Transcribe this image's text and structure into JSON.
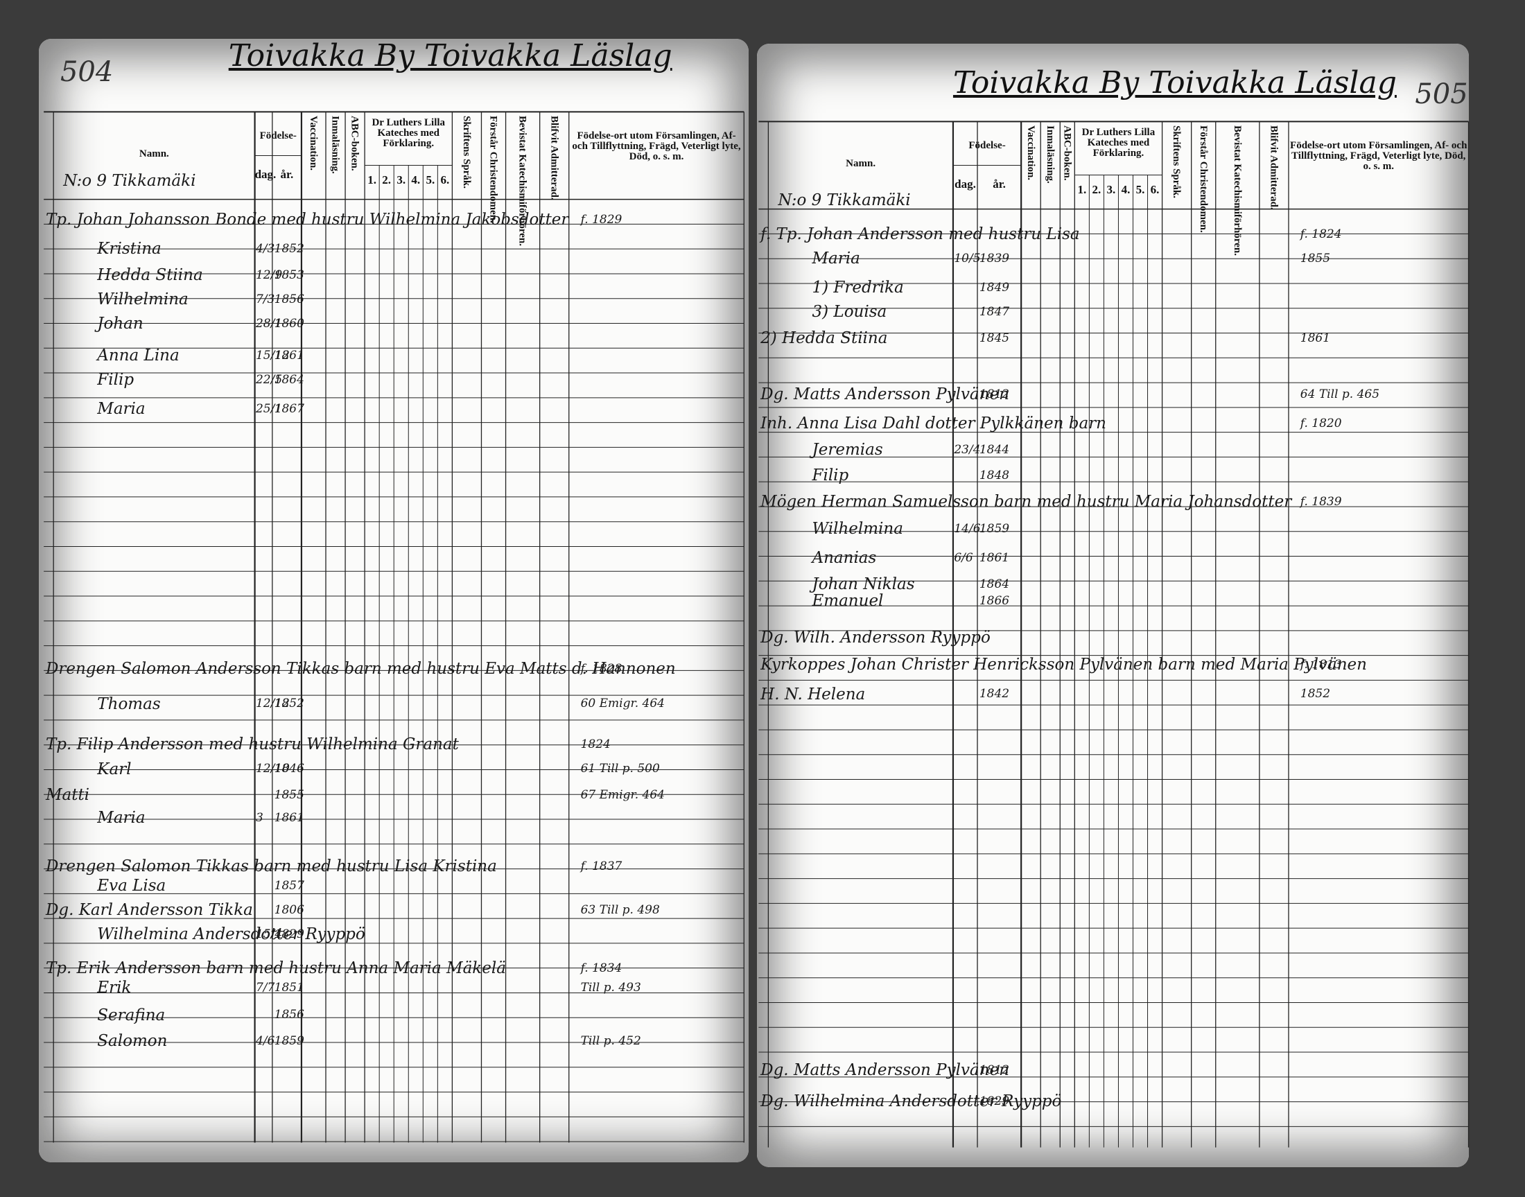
{
  "pages": [
    {
      "page_number": "504",
      "heading": "Toivakka By Toivakka Läslag",
      "header": {
        "name": "Namn.",
        "birth": "Födelse-",
        "day": "dag.",
        "year": "år.",
        "vaccination": "Vaccination.",
        "reading": "Inmaläsning.",
        "abc": "ABC-boken.",
        "catechism": "Dr Luthers Lilla Kateches med Förklaring.",
        "catechism_parts": [
          "1.",
          "2.",
          "3.",
          "4.",
          "5.",
          "6."
        ],
        "scripture": "Skriftens Språk.",
        "christendom": "Förstår Christendomen.",
        "hearings": "Bevistat Katechismiförhören.",
        "admitted": "Blifvit Admitterad.",
        "remarks": "Födelse-ort utom Församlingen, Af- och Tillflyttning, Frägd, Veterligt lyte, Död, o. s. m."
      },
      "entries": [
        {
          "name": "N:o 9 Tikkamäki"
        },
        {
          "name": "Tp. Johan Johansson Bonde med hustru Wilhelmina Jakobsdotter",
          "note": "f. 1829"
        },
        {
          "name": "Kristina",
          "day": "4/3",
          "year": "1852"
        },
        {
          "name": "Hedda Stiina",
          "day": "12/9",
          "year": "1853"
        },
        {
          "name": "Wilhelmina",
          "day": "7/3",
          "year": "1856"
        },
        {
          "name": "Johan",
          "day": "28/1",
          "year": "1860"
        },
        {
          "name": "Anna Lina",
          "day": "15/12",
          "year": "1861"
        },
        {
          "name": "Filip",
          "day": "22/5",
          "year": "1864"
        },
        {
          "name": "Maria",
          "day": "25/1",
          "year": "1867"
        },
        {
          "name": "Drengen Salomon Andersson Tikkas barn med hustru Eva Matts d. Hannonen",
          "note": "f. 1828"
        },
        {
          "name": "Thomas",
          "day": "12/12",
          "year": "1852",
          "note": "60 Emigr. 464"
        },
        {
          "name": "Tp. Filip Andersson med hustru Wilhelmina Granat",
          "note": "1824"
        },
        {
          "name": "Karl",
          "day": "12/10",
          "year": "1846",
          "note": "61 Till p. 500"
        },
        {
          "name": "Matti",
          "year": "1855",
          "note": "67 Emigr. 464"
        },
        {
          "name": "Maria",
          "day": "3",
          "year": "1861"
        },
        {
          "name": "Drengen Salomon Tikkas barn med hustru Lisa Kristina",
          "note": "f. 1837"
        },
        {
          "name": "Eva Lisa",
          "year": "1857"
        },
        {
          "name": "Dg. Karl Andersson Tikka",
          "year": "1806",
          "note": "63 Till p. 498"
        },
        {
          "name": "Wilhelmina Andersdotter Ryyppö",
          "day": "15/4",
          "year": "1829"
        },
        {
          "name": "Tp. Erik Andersson barn med hustru Anna Maria Mäkelä",
          "note": "f. 1834"
        },
        {
          "name": "Erik",
          "day": "7/7",
          "year": "1851",
          "note": "Till p. 493"
        },
        {
          "name": "Serafina",
          "year": "1856"
        },
        {
          "name": "Salomon",
          "day": "4/6",
          "year": "1859",
          "note": "Till p. 452"
        }
      ]
    },
    {
      "page_number": "505",
      "heading": "Toivakka By Toivakka Läslag",
      "header": {
        "name": "Namn.",
        "birth": "Födelse-",
        "day": "dag.",
        "year": "år.",
        "vaccination": "Vaccination.",
        "reading": "Inmaläsning.",
        "abc": "ABC-boken.",
        "catechism": "Dr Luthers Lilla Kateches med Förklaring.",
        "catechism_parts": [
          "1.",
          "2.",
          "3.",
          "4.",
          "5.",
          "6."
        ],
        "scripture": "Skriftens Språk.",
        "christendom": "Förstår Christendomen.",
        "hearings": "Bevistat Katechismiförhören.",
        "admitted": "Blifvit Admitterad.",
        "remarks": "Födelse-ort utom Församlingen, Af- och Tillflyttning, Frägd, Veterligt lyte, Död, o. s. m."
      },
      "entries": [
        {
          "name": "N:o 9 Tikkamäki"
        },
        {
          "name": "f. Tp. Johan Andersson med hustru Lisa",
          "note": "f. 1824"
        },
        {
          "name": "Maria",
          "day": "10/5",
          "year": "1839",
          "note": "1855"
        },
        {
          "name": "1) Fredrika",
          "year": "1849"
        },
        {
          "name": "3) Louisa",
          "year": "1847"
        },
        {
          "name": "2) Hedda Stiina",
          "year": "1845",
          "note": "1861"
        },
        {
          "name": "Dg. Matts Andersson Pylvänen",
          "year": "1812",
          "note": "64 Till p. 465"
        },
        {
          "name": "Inh. Anna Lisa Dahl dotter Pylkkänen barn",
          "note": "f. 1820"
        },
        {
          "name": "Jeremias",
          "day": "23/4",
          "year": "1844"
        },
        {
          "name": "Filip",
          "year": "1848"
        },
        {
          "name": "Mögen Herman Samuelsson barn med hustru Maria Johansdotter",
          "note": "f. 1839"
        },
        {
          "name": "Wilhelmina",
          "day": "14/6",
          "year": "1859"
        },
        {
          "name": "Ananias",
          "day": "6/6",
          "year": "1861"
        },
        {
          "name": "Johan Niklas",
          "year": "1864"
        },
        {
          "name": "Emanuel",
          "year": "1866"
        },
        {
          "name": "Dg. Wilh. Andersson Ryyppö"
        },
        {
          "name": "Kyrkoppes Johan Christer Henricksson Pylvänen barn med Maria Pylvänen",
          "note": "f. 1813"
        },
        {
          "name": "H. N. Helena",
          "year": "1842",
          "note": "1852"
        },
        {
          "name": "Dg. Matts Andersson Pylvänen",
          "year": "1812"
        },
        {
          "name": "Dg. Wilhelmina Andersdotter Ryyppö",
          "year": "1829"
        }
      ]
    }
  ]
}
